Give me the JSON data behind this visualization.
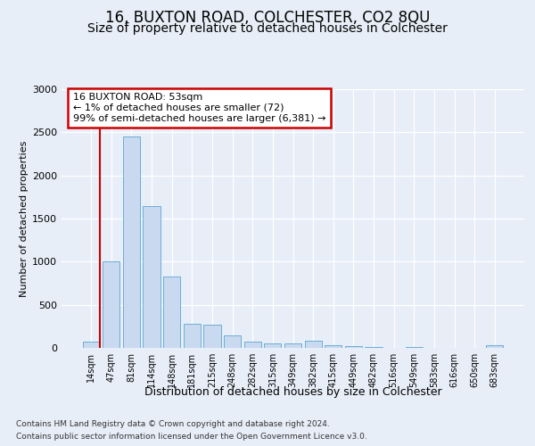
{
  "title": "16, BUXTON ROAD, COLCHESTER, CO2 8QU",
  "subtitle": "Size of property relative to detached houses in Colchester",
  "xlabel": "Distribution of detached houses by size in Colchester",
  "ylabel": "Number of detached properties",
  "categories": [
    "14sqm",
    "47sqm",
    "81sqm",
    "114sqm",
    "148sqm",
    "181sqm",
    "215sqm",
    "248sqm",
    "282sqm",
    "315sqm",
    "349sqm",
    "382sqm",
    "415sqm",
    "449sqm",
    "482sqm",
    "516sqm",
    "549sqm",
    "583sqm",
    "616sqm",
    "650sqm",
    "683sqm"
  ],
  "bar_heights": [
    72,
    1000,
    2450,
    1650,
    830,
    280,
    270,
    140,
    70,
    55,
    55,
    80,
    35,
    25,
    15,
    5,
    10,
    0,
    5,
    0,
    30
  ],
  "bar_color": "#c9d9f0",
  "bar_edge_color": "#6baed6",
  "vline_color": "#cc0000",
  "annotation_line1": "16 BUXTON ROAD: 53sqm",
  "annotation_line2": "← 1% of detached houses are smaller (72)",
  "annotation_line3": "99% of semi-detached houses are larger (6,381) →",
  "annotation_box_facecolor": "#ffffff",
  "annotation_box_edgecolor": "#cc0000",
  "ylim": [
    0,
    3000
  ],
  "yticks": [
    0,
    500,
    1000,
    1500,
    2000,
    2500,
    3000
  ],
  "footer1": "Contains HM Land Registry data © Crown copyright and database right 2024.",
  "footer2": "Contains public sector information licensed under the Open Government Licence v3.0.",
  "bg_color": "#e8eef8",
  "grid_color": "#ffffff",
  "title_fontsize": 12,
  "subtitle_fontsize": 10,
  "ann_fontsize": 8,
  "ylabel_fontsize": 8,
  "xlabel_fontsize": 9,
  "footer_fontsize": 6.5,
  "tick_fontsize": 7
}
